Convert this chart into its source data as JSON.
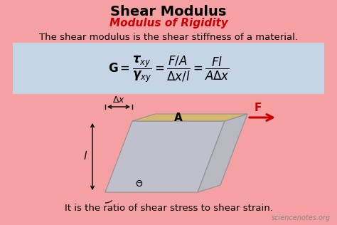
{
  "bg_color": "#f5a0a2",
  "formula_bg": "#c5d5e5",
  "title": "Shear Modulus",
  "subtitle": "Modulus of Rigidity",
  "subtitle_color": "#cc0000",
  "description": "The shear modulus is the shear stiffness of a material.",
  "bottom_text": "It is the ratio of shear stress to shear strain.",
  "watermark": "sciencenotes.org",
  "arrow_color": "#cc0000",
  "block_top_color": "#d4b870",
  "block_side_color": "#b8b8c0",
  "block_front_color": "#c0c0cc",
  "label_color": "#000000",
  "figw": 4.74,
  "figh": 3.16,
  "dpi": 100
}
